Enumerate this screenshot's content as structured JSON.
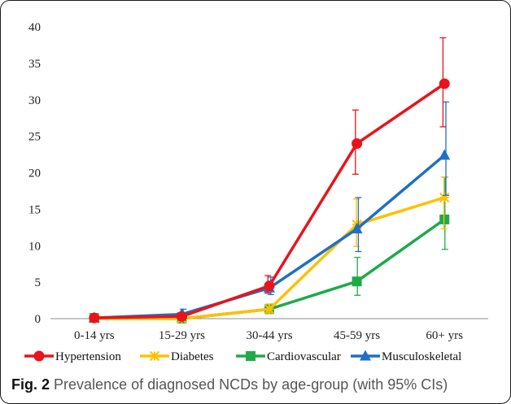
{
  "caption": {
    "label": "Fig. 2",
    "text": "Prevalence of diagnosed NCDs by age-group (with 95% CIs)"
  },
  "chart_data": {
    "type": "line",
    "title": "",
    "xlabel": "",
    "ylabel": "",
    "categories": [
      "0-14 yrs",
      "15-29 yrs",
      "30-44 yrs",
      "45-59 yrs",
      "60+ yrs"
    ],
    "ylim": [
      0,
      40
    ],
    "yticks": [
      0,
      5,
      10,
      15,
      20,
      25,
      30,
      35,
      40
    ],
    "grid": false,
    "legend_position": "bottom",
    "series": [
      {
        "name": "Hypertension",
        "color": "#e8141b",
        "marker": "circle",
        "values": [
          0.1,
          0.3,
          4.5,
          24.0,
          32.2
        ],
        "ci_low": [
          0.0,
          0.1,
          3.5,
          19.8,
          26.3
        ],
        "ci_high": [
          0.3,
          0.8,
          5.9,
          28.6,
          38.5
        ]
      },
      {
        "name": "Diabetes",
        "color": "#ffc000",
        "marker": "star",
        "values": [
          0.0,
          0.0,
          1.3,
          12.9,
          16.6
        ],
        "ci_low": [
          0.0,
          0.0,
          0.8,
          9.9,
          12.3
        ],
        "ci_high": [
          0.1,
          0.2,
          2.0,
          16.4,
          19.4
        ]
      },
      {
        "name": "Cardiovascular",
        "color": "#1faa4a",
        "marker": "square",
        "values": [
          0.1,
          0.0,
          1.3,
          5.1,
          13.6
        ],
        "ci_low": [
          0.0,
          0.0,
          0.8,
          3.2,
          9.5
        ],
        "ci_high": [
          0.2,
          0.1,
          2.0,
          8.4,
          19.4
        ]
      },
      {
        "name": "Musculoskeletal",
        "color": "#1f6fc5",
        "marker": "triangle",
        "values": [
          0.1,
          0.6,
          4.2,
          12.3,
          22.4
        ],
        "ci_low": [
          0.0,
          0.2,
          3.3,
          9.2,
          16.9
        ],
        "ci_high": [
          0.3,
          1.3,
          5.7,
          16.6,
          29.7
        ]
      }
    ]
  }
}
